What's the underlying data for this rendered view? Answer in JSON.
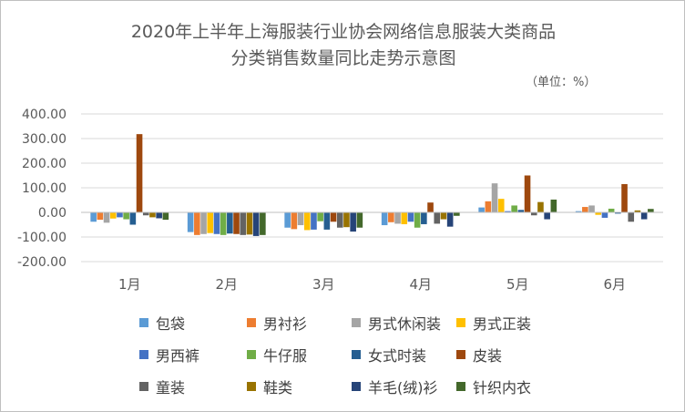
{
  "chart_data": {
    "type": "bar",
    "title": "2020年上半年上海服装行业协会网络信息服装大类商品",
    "subtitle": "分类销售数量同比走势示意图",
    "unit_note": "（单位：%）",
    "categories": [
      "1月",
      "2月",
      "3月",
      "4月",
      "5月",
      "6月"
    ],
    "ylim": [
      -200,
      400
    ],
    "yticks": [
      "400.00",
      "300.00",
      "200.00",
      "100.00",
      "0.00",
      "-100.00",
      "-200.00"
    ],
    "ytick_values": [
      400,
      300,
      200,
      100,
      0,
      -100,
      -200
    ],
    "grid": true,
    "legend_position": "bottom",
    "series": [
      {
        "name": "包袋",
        "color": "#5B9BD5",
        "values": [
          -38,
          -80,
          -62,
          -52,
          20,
          5
        ]
      },
      {
        "name": "男衬衫",
        "color": "#ED7D31",
        "values": [
          -30,
          -92,
          -68,
          -40,
          45,
          22
        ]
      },
      {
        "name": "男式休闲装",
        "color": "#A5A5A5",
        "values": [
          -42,
          -88,
          -52,
          -46,
          118,
          28
        ]
      },
      {
        "name": "男式正装",
        "color": "#FFC000",
        "values": [
          -25,
          -84,
          -72,
          -48,
          55,
          -10
        ]
      },
      {
        "name": "男西裤",
        "color": "#4472C4",
        "values": [
          -20,
          -88,
          -70,
          -38,
          5,
          -22
        ]
      },
      {
        "name": "牛仔服",
        "color": "#70AD47",
        "values": [
          -28,
          -92,
          -36,
          -62,
          28,
          15
        ]
      },
      {
        "name": "女式时装",
        "color": "#255E91",
        "values": [
          -50,
          -86,
          -70,
          -48,
          10,
          -5
        ]
      },
      {
        "name": "皮装",
        "color": "#9E480E",
        "values": [
          318,
          -88,
          -38,
          40,
          150,
          115
        ]
      },
      {
        "name": "童装",
        "color": "#636363",
        "values": [
          -12,
          -92,
          -62,
          -46,
          -12,
          -38
        ]
      },
      {
        "name": "鞋类",
        "color": "#997300",
        "values": [
          -20,
          -90,
          -60,
          -28,
          42,
          8
        ]
      },
      {
        "name": "羊毛(绒)衫",
        "color": "#264478",
        "values": [
          -24,
          -96,
          -78,
          -58,
          -28,
          -28
        ]
      },
      {
        "name": "针织内衣",
        "color": "#43682B",
        "values": [
          -30,
          -92,
          -62,
          -14,
          52,
          14
        ]
      }
    ]
  }
}
